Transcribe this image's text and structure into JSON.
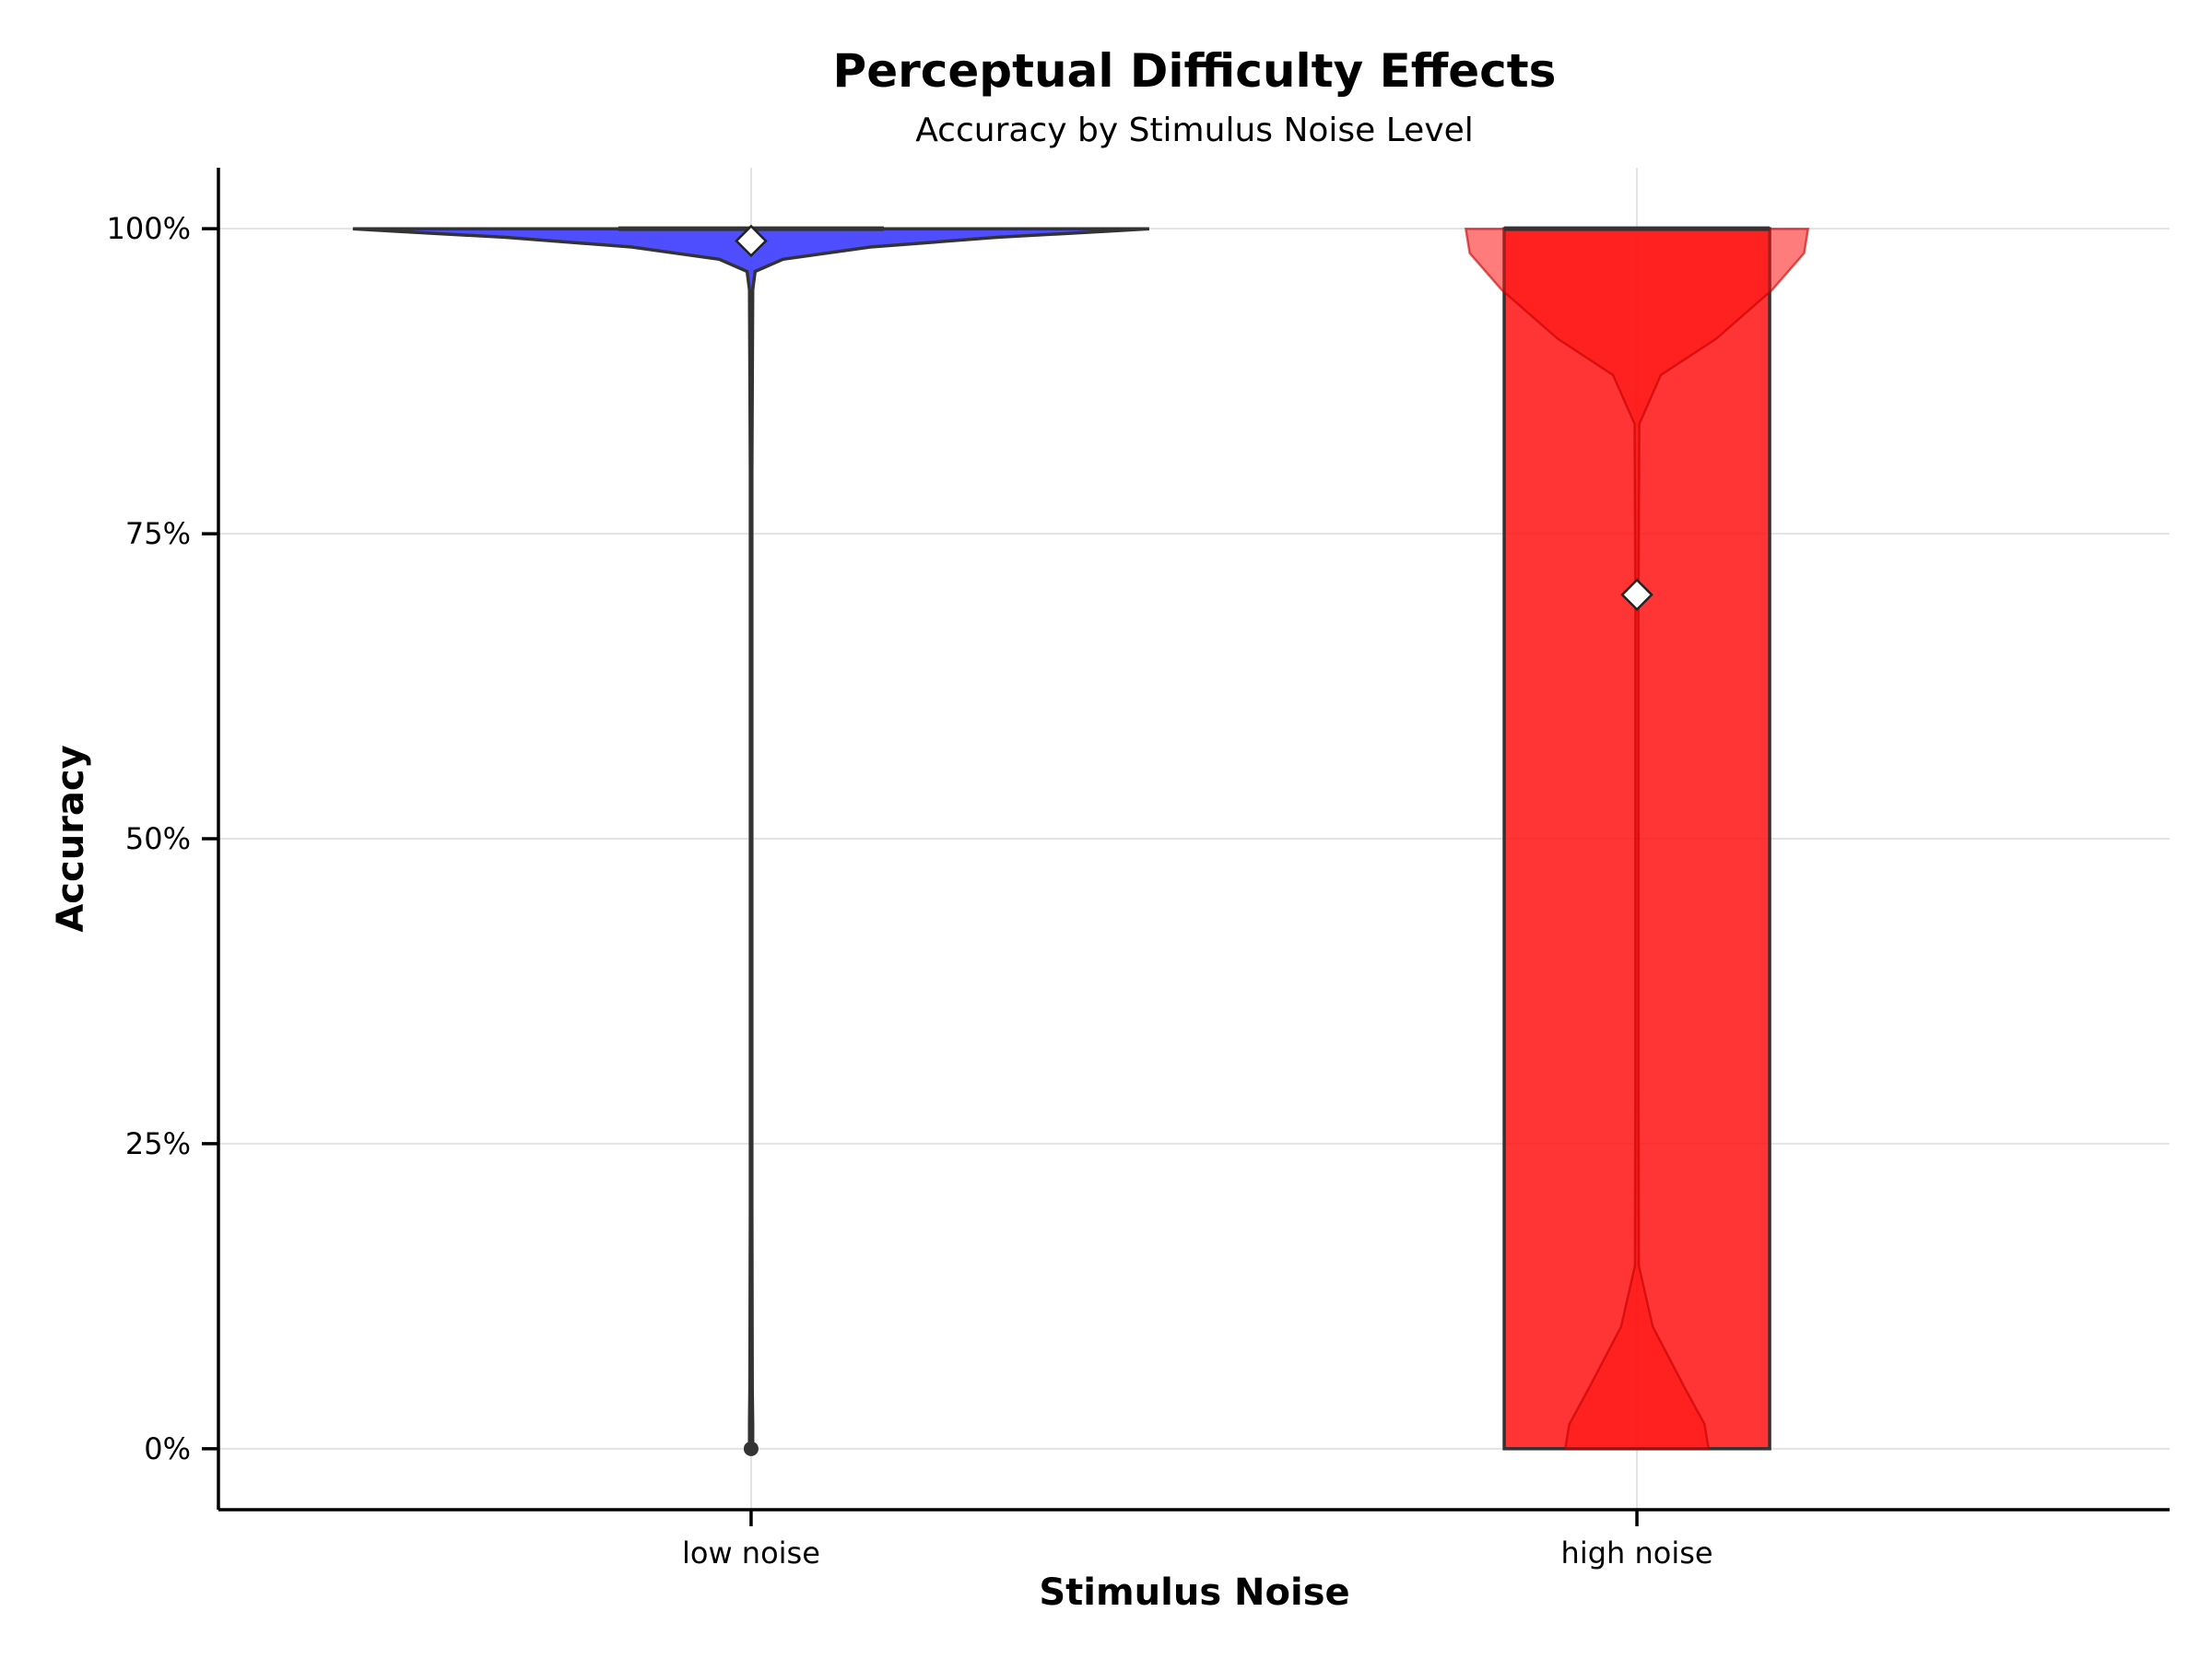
{
  "chart_data": {
    "type": "violin",
    "title": "Perceptual Difficulty Effects",
    "subtitle": "Accuracy by Stimulus Noise Level",
    "xlabel": "Stimulus Noise",
    "ylabel": "Accuracy",
    "ylim": [
      -0.05,
      1.05
    ],
    "yticks": [
      0,
      0.25,
      0.5,
      0.75,
      1.0
    ],
    "ytick_labels": [
      "0%",
      "25%",
      "50%",
      "75%",
      "100%"
    ],
    "categories": [
      "low noise",
      "high noise"
    ],
    "grid": true,
    "legend": "none",
    "series": [
      {
        "category": "low noise",
        "color": "#3b3bff",
        "mean": 0.99,
        "box": {
          "q1": 1.0,
          "median": 1.0,
          "q3": 1.0
        },
        "whisker": [
          0.0,
          1.0
        ],
        "density": [
          [
            0.0,
            0.004
          ],
          [
            0.02,
            0.004
          ],
          [
            0.05,
            0.003
          ],
          [
            0.2,
            0.002
          ],
          [
            0.5,
            0.002
          ],
          [
            0.8,
            0.002
          ],
          [
            0.95,
            0.004
          ],
          [
            0.965,
            0.01
          ],
          [
            0.975,
            0.08
          ],
          [
            0.985,
            0.3
          ],
          [
            0.993,
            0.62
          ],
          [
            0.998,
            0.9
          ],
          [
            1.0,
            1.0
          ]
        ]
      },
      {
        "category": "high noise",
        "color": "#ff1111",
        "mean": 0.7,
        "box": {
          "q1": 0.0,
          "median": 1.0,
          "q3": 1.0
        },
        "whisker": [
          0.0,
          1.0
        ],
        "density": [
          [
            0.0,
            0.18
          ],
          [
            0.02,
            0.17
          ],
          [
            0.05,
            0.12
          ],
          [
            0.1,
            0.04
          ],
          [
            0.15,
            0.005
          ],
          [
            0.3,
            0.004
          ],
          [
            0.5,
            0.004
          ],
          [
            0.7,
            0.004
          ],
          [
            0.84,
            0.006
          ],
          [
            0.88,
            0.06
          ],
          [
            0.91,
            0.2
          ],
          [
            0.95,
            0.34
          ],
          [
            0.98,
            0.42
          ],
          [
            1.0,
            0.43
          ]
        ]
      }
    ]
  }
}
